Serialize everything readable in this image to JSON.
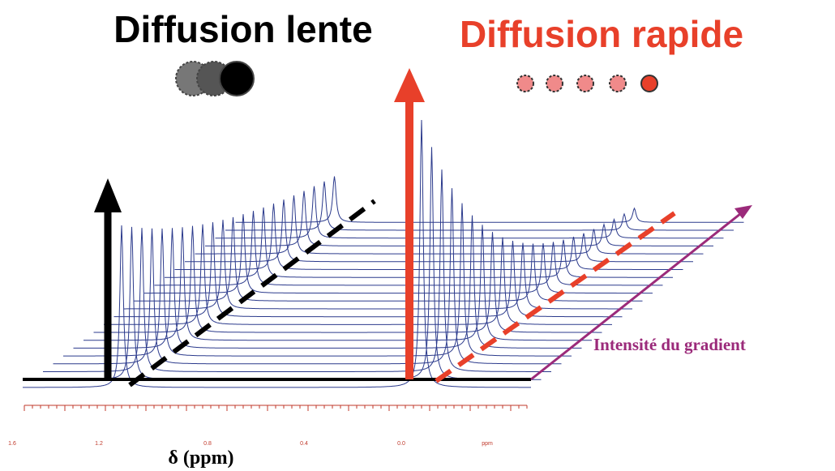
{
  "titles": {
    "slow": "Diffusion lente",
    "fast": "Diffusion rapide"
  },
  "gradient_label": "Intensité du gradient",
  "axis_title": "δ (ppm)",
  "axis_ticks": [
    "1.6",
    "1.2",
    "0.8",
    "0.4",
    "0.0",
    "ppm"
  ]
}
